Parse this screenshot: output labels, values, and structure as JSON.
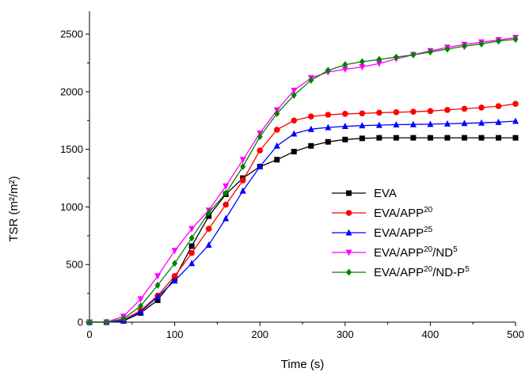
{
  "chart_data": {
    "type": "line",
    "title": "",
    "xlabel": "Time (s)",
    "ylabel": "TSR (m²/m²)",
    "xlim": [
      0,
      500
    ],
    "ylim": [
      0,
      2700
    ],
    "xticks": [
      0,
      100,
      200,
      300,
      400,
      500
    ],
    "yticks": [
      0,
      500,
      1000,
      1500,
      2000,
      2500
    ],
    "grid": false,
    "legend_position": "bottom-right",
    "x": [
      0,
      20,
      40,
      60,
      80,
      100,
      120,
      140,
      160,
      180,
      200,
      220,
      240,
      260,
      280,
      300,
      320,
      340,
      360,
      380,
      400,
      420,
      440,
      460,
      480,
      500
    ],
    "series": [
      {
        "name": "EVA",
        "label_base": "EVA",
        "label_parts": [],
        "color": "#000000",
        "marker": "square",
        "values": [
          0,
          0,
          10,
          80,
          190,
          380,
          660,
          920,
          1110,
          1250,
          1350,
          1410,
          1480,
          1530,
          1565,
          1585,
          1595,
          1600,
          1600,
          1600,
          1600,
          1600,
          1600,
          1600,
          1600,
          1600
        ]
      },
      {
        "name": "EVA/APP20",
        "label_base": "EVA/APP",
        "label_parts": [
          {
            "sup": "20"
          }
        ],
        "color": "#ff0000",
        "marker": "circle",
        "values": [
          0,
          0,
          20,
          100,
          230,
          400,
          600,
          810,
          1020,
          1230,
          1490,
          1670,
          1750,
          1785,
          1800,
          1808,
          1812,
          1818,
          1822,
          1826,
          1832,
          1842,
          1852,
          1862,
          1875,
          1895
        ]
      },
      {
        "name": "EVA/APP25",
        "label_base": "EVA/APP",
        "label_parts": [
          {
            "sup": "25"
          }
        ],
        "color": "#0000ff",
        "marker": "triangle-up",
        "values": [
          0,
          0,
          10,
          90,
          220,
          360,
          510,
          670,
          900,
          1140,
          1350,
          1530,
          1635,
          1675,
          1690,
          1700,
          1706,
          1710,
          1714,
          1716,
          1718,
          1722,
          1726,
          1730,
          1736,
          1745
        ]
      },
      {
        "name": "EVA/APP20/ND5",
        "label_base": "EVA/APP",
        "label_parts": [
          {
            "sup": "20"
          },
          {
            "text": "/ND"
          },
          {
            "sup": "5"
          }
        ],
        "color": "#ff00ff",
        "marker": "triangle-down",
        "values": [
          0,
          0,
          50,
          200,
          400,
          620,
          810,
          970,
          1180,
          1410,
          1640,
          1840,
          2010,
          2120,
          2170,
          2195,
          2215,
          2245,
          2285,
          2320,
          2355,
          2385,
          2410,
          2430,
          2450,
          2470
        ]
      },
      {
        "name": "EVA/APP20/ND-P5",
        "label_base": "EVA/APP",
        "label_parts": [
          {
            "sup": "20"
          },
          {
            "text": "/ND-P"
          },
          {
            "sup": "5"
          }
        ],
        "color": "#008000",
        "marker": "diamond",
        "values": [
          0,
          0,
          30,
          140,
          320,
          510,
          730,
          950,
          1120,
          1350,
          1610,
          1810,
          1970,
          2100,
          2185,
          2235,
          2260,
          2280,
          2300,
          2320,
          2345,
          2370,
          2395,
          2415,
          2440,
          2455
        ]
      }
    ]
  }
}
